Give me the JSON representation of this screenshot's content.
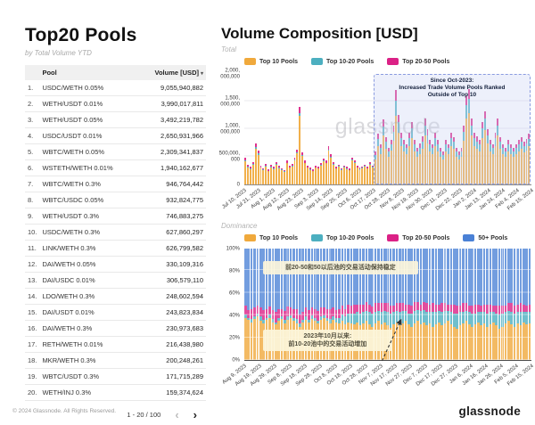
{
  "left_panel": {
    "title": "Top20 Pools",
    "subtitle": "by Total Volume YTD",
    "table": {
      "columns": [
        "Pool",
        "Volume [USD]"
      ],
      "sort_icon": "▾",
      "rows": [
        {
          "rank": "1.",
          "pool": "USDC/WETH 0.05%",
          "volume": "9,055,940,882"
        },
        {
          "rank": "2.",
          "pool": "WETH/USDT 0.01%",
          "volume": "3,990,017,811"
        },
        {
          "rank": "3.",
          "pool": "WETH/USDT 0.05%",
          "volume": "3,492,219,782"
        },
        {
          "rank": "4.",
          "pool": "USDC/USDT 0.01%",
          "volume": "2,650,931,966"
        },
        {
          "rank": "5.",
          "pool": "WBTC/WETH 0.05%",
          "volume": "2,309,341,837"
        },
        {
          "rank": "6.",
          "pool": "WSTETH/WETH 0.01%",
          "volume": "1,940,162,677"
        },
        {
          "rank": "7.",
          "pool": "WBTC/WETH 0.3%",
          "volume": "946,764,442"
        },
        {
          "rank": "8.",
          "pool": "WBTC/USDC 0.05%",
          "volume": "932,824,775"
        },
        {
          "rank": "9.",
          "pool": "WETH/USDT 0.3%",
          "volume": "746,883,275"
        },
        {
          "rank": "10.",
          "pool": "USDC/WETH 0.3%",
          "volume": "627,860,297"
        },
        {
          "rank": "11.",
          "pool": "LINK/WETH 0.3%",
          "volume": "626,799,582"
        },
        {
          "rank": "12.",
          "pool": "DAI/WETH 0.05%",
          "volume": "330,109,316"
        },
        {
          "rank": "13.",
          "pool": "DAI/USDC 0.01%",
          "volume": "306,579,110"
        },
        {
          "rank": "14.",
          "pool": "LDO/WETH 0.3%",
          "volume": "248,602,594"
        },
        {
          "rank": "15.",
          "pool": "DAI/USDT 0.01%",
          "volume": "243,823,834"
        },
        {
          "rank": "16.",
          "pool": "DAI/WETH 0.3%",
          "volume": "230,973,683"
        },
        {
          "rank": "17.",
          "pool": "RETH/WETH 0.01%",
          "volume": "216,438,980"
        },
        {
          "rank": "18.",
          "pool": "MKR/WETH 0.3%",
          "volume": "200,248,261"
        },
        {
          "rank": "19.",
          "pool": "WBTC/USDT 0.3%",
          "volume": "171,715,289"
        },
        {
          "rank": "20.",
          "pool": "WETH/INJ 0.3%",
          "volume": "159,374,624"
        }
      ]
    },
    "pagination": {
      "label": "1 - 20 / 100",
      "prev": "‹",
      "next": "›"
    }
  },
  "right_panel": {
    "title": "Volume Composition [USD]"
  },
  "chart_data": [
    {
      "type": "bar",
      "stacked": true,
      "title": "Total",
      "unit": "USD",
      "x_start": "Jul 10, 2023",
      "x_end": "Feb 15, 2024",
      "ylim_musd": [
        0,
        2000
      ],
      "yticks": [
        "0",
        "500,000,\n000",
        "1,000,\n000,000",
        "1,500,\n000,000",
        "2,000,\n000,000"
      ],
      "xticks": [
        "Jul 10, 2023",
        "Jul 21, 2023",
        "Aug 1, 2023",
        "Aug 12, 2023",
        "Aug 23, 2023",
        "Sep 3, 2023",
        "Sep 14, 2023",
        "Sep 25, 2023",
        "Oct 6, 2023",
        "Oct 17, 2023",
        "Oct 28, 2023",
        "Nov 8, 2023",
        "Nov 19, 2023",
        "Nov 30, 2023",
        "Dec 11, 2023",
        "Dec 22, 2023",
        "Jan 2, 2024",
        "Jan 13, 2024",
        "Jan 24, 2024",
        "Feb 4, 2024",
        "Feb 15, 2024"
      ],
      "watermark": "glassnode",
      "annotation": {
        "text": "Since Oct-2023:\nIncreased Trade Volume Pools Ranked\nOutside of Top 10",
        "region_from_frac": 0.45
      },
      "series": [
        {
          "name": "Top 10 Pools",
          "color": "#F0A93C",
          "values_musd": [
            420,
            310,
            280,
            360,
            650,
            540,
            300,
            260,
            330,
            240,
            310,
            280,
            350,
            295,
            260,
            230,
            380,
            300,
            330,
            430,
            560,
            1250,
            520,
            380,
            300,
            265,
            240,
            300,
            285,
            340,
            420,
            380,
            610,
            480,
            350,
            285,
            320,
            260,
            305,
            280,
            255,
            430,
            385,
            300,
            265,
            290,
            320,
            285,
            350,
            305,
            450,
            690,
            545,
            880,
            640,
            500,
            610,
            790,
            1250,
            940,
            700,
            600,
            545,
            695,
            840,
            600,
            500,
            550,
            650,
            890,
            745,
            600,
            545,
            700,
            600,
            500,
            450,
            600,
            545,
            695,
            645,
            500,
            450,
            495,
            790,
            1190,
            1290,
            890,
            695,
            650,
            600,
            845,
            990,
            745,
            600,
            545,
            695,
            890,
            645,
            545,
            500,
            600,
            545,
            500,
            545,
            600,
            645,
            575,
            615,
            690
          ]
        },
        {
          "name": "Top 10-20 Pools",
          "color": "#4CAFC0",
          "values_musd": [
            18,
            12,
            10,
            15,
            25,
            20,
            12,
            10,
            14,
            9,
            12,
            10,
            14,
            11,
            9,
            8,
            15,
            12,
            13,
            17,
            22,
            45,
            20,
            15,
            12,
            10,
            9,
            12,
            11,
            13,
            16,
            15,
            24,
            19,
            14,
            11,
            12,
            10,
            12,
            11,
            10,
            17,
            15,
            12,
            10,
            11,
            13,
            11,
            14,
            12,
            90,
            140,
            110,
            175,
            130,
            100,
            120,
            160,
            270,
            190,
            140,
            120,
            110,
            140,
            170,
            120,
            100,
            110,
            130,
            180,
            150,
            120,
            110,
            140,
            120,
            100,
            90,
            120,
            110,
            140,
            130,
            100,
            90,
            100,
            160,
            240,
            260,
            180,
            140,
            130,
            120,
            170,
            200,
            150,
            120,
            110,
            140,
            180,
            130,
            110,
            100,
            120,
            110,
            100,
            110,
            120,
            130,
            115,
            125,
            140
          ]
        },
        {
          "name": "Top 20-50 Pools",
          "color": "#DB2186",
          "values_musd": [
            40,
            30,
            26,
            34,
            60,
            50,
            28,
            24,
            31,
            22,
            29,
            26,
            33,
            28,
            24,
            21,
            35,
            28,
            31,
            40,
            52,
            115,
            48,
            35,
            28,
            25,
            22,
            28,
            26,
            32,
            39,
            35,
            57,
            45,
            33,
            26,
            30,
            24,
            28,
            26,
            24,
            40,
            36,
            28,
            25,
            27,
            30,
            26,
            33,
            28,
            60,
            95,
            75,
            120,
            88,
            68,
            82,
            108,
            185,
            128,
            95,
            82,
            75,
            95,
            115,
            82,
            68,
            75,
            88,
            122,
            102,
            82,
            75,
            95,
            82,
            68,
            60,
            82,
            75,
            95,
            88,
            68,
            60,
            68,
            108,
            165,
            178,
            122,
            95,
            88,
            82,
            115,
            135,
            102,
            82,
            75,
            95,
            122,
            88,
            75,
            68,
            82,
            75,
            68,
            75,
            82,
            88,
            78,
            85,
            95
          ]
        }
      ]
    },
    {
      "type": "bar",
      "stacked_pct": true,
      "title": "Dominance",
      "x_start": "Aug 9, 2023",
      "x_end": "Feb 15, 2024",
      "ylim_pct": [
        0,
        100
      ],
      "yticks": [
        "0%",
        "20%",
        "40%",
        "60%",
        "80%",
        "100%"
      ],
      "xticks": [
        "Aug 9, 2023",
        "Aug 19, 2023",
        "Aug 29, 2023",
        "Sep 8, 2023",
        "Sep 18, 2023",
        "Sep 28, 2023",
        "Oct 8, 2023",
        "Oct 18, 2023",
        "Oct 28, 2023",
        "Nov 7, 2023",
        "Nov 17, 2023",
        "Nov 27, 2023",
        "Dec 7, 2023",
        "Dec 17, 2023",
        "Dec 27, 2023",
        "Jan 6, 2024",
        "Jan 16, 2024",
        "Jan 26, 2024",
        "Feb 5, 2024",
        "Feb 15, 2024"
      ],
      "annotations": [
        {
          "id": "stable",
          "text": "前20-50和50以后池的交易活动保持稳定"
        },
        {
          "id": "increase",
          "text": "2023年10月以来:\n前10-20池中的交易活动增加"
        }
      ],
      "series": [
        {
          "name": "Top 10 Pools",
          "color": "#F0A93C",
          "values_pct": [
            38,
            36,
            34,
            37,
            39,
            35,
            33,
            36,
            38,
            34,
            32,
            35,
            37,
            33,
            36,
            38,
            35,
            33,
            30,
            34,
            36,
            34,
            37,
            35,
            33,
            36,
            38,
            35,
            33,
            36,
            34,
            33,
            35,
            32,
            34,
            33,
            32,
            34,
            31,
            33,
            35,
            32,
            30,
            33,
            35,
            32,
            34,
            31,
            29,
            32,
            34,
            31,
            33,
            35,
            32,
            30,
            33,
            35,
            32,
            34,
            31,
            33,
            30,
            32,
            34,
            31,
            33,
            35,
            32,
            30,
            28,
            31,
            33,
            35,
            32,
            30,
            32,
            34,
            31,
            33,
            30,
            32,
            34,
            31,
            28,
            30,
            33,
            35,
            32,
            30,
            33,
            31,
            34,
            32,
            33
          ]
        },
        {
          "name": "Top 10-20 Pools",
          "color": "#4CAFC0",
          "values_pct": [
            3,
            2,
            3,
            2,
            3,
            4,
            3,
            2,
            3,
            3,
            2,
            3,
            2,
            3,
            3,
            2,
            3,
            4,
            3,
            2,
            3,
            2,
            3,
            3,
            2,
            3,
            2,
            3,
            4,
            3,
            4,
            5,
            6,
            7,
            8,
            9,
            10,
            9,
            11,
            10,
            9,
            11,
            12,
            10,
            9,
            11,
            10,
            12,
            13,
            11,
            10,
            12,
            11,
            9,
            10,
            12,
            11,
            10,
            12,
            11,
            12,
            10,
            13,
            11,
            10,
            12,
            11,
            9,
            11,
            12,
            14,
            12,
            10,
            9,
            11,
            12,
            10,
            9,
            12,
            10,
            12,
            11,
            9,
            11,
            13,
            12,
            10,
            9,
            11,
            12,
            10,
            12,
            9,
            11,
            10
          ]
        },
        {
          "name": "Top 20-50 Pools",
          "color": "#DB2186",
          "values_pct": [
            8,
            7,
            9,
            8,
            7,
            8,
            9,
            8,
            7,
            8,
            9,
            8,
            7,
            8,
            9,
            7,
            8,
            9,
            8,
            7,
            8,
            9,
            7,
            8,
            9,
            8,
            7,
            8,
            9,
            8,
            7,
            8,
            8,
            7,
            8,
            7,
            8,
            7,
            8,
            7,
            8,
            7,
            6,
            8,
            7,
            8,
            7,
            8,
            7,
            6,
            7,
            8,
            7,
            6,
            8,
            7,
            8,
            7,
            6,
            7,
            8,
            7,
            8,
            7,
            6,
            8,
            7,
            6,
            7,
            8,
            7,
            6,
            8,
            7,
            6,
            7,
            8,
            7,
            6,
            7,
            8,
            7,
            6,
            7,
            8,
            7,
            6,
            7,
            8,
            7,
            7,
            8,
            7,
            6,
            7
          ]
        },
        {
          "name": "50+ Pools",
          "color": "#4A81D6",
          "values_pct": "remainder_to_100"
        }
      ]
    }
  ],
  "footer": {
    "copyright": "© 2024 Glassnode. All Rights Reserved.",
    "brand": "glassnode"
  }
}
